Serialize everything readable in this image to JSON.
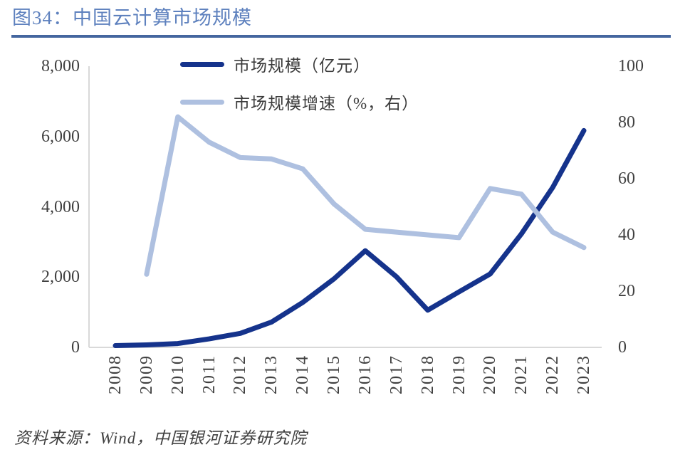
{
  "header": {
    "title": "图34：中国云计算市场规模"
  },
  "footer": {
    "source_note": "资料来源：Wind，中国银河证券研究院"
  },
  "colors": {
    "market_size_line": "#15338C",
    "growth_rate_line": "#AEC0E0",
    "title_text": "#5E81BE",
    "title_divider": "#44669F",
    "axis_line": "#D9D9D9",
    "axis_text": "#404040"
  },
  "chart_data": {
    "type": "line",
    "title": "中国云计算市场规模",
    "categories": [
      "2008",
      "2009",
      "2010",
      "2011",
      "2012",
      "2013",
      "2014",
      "2015",
      "2016",
      "2017",
      "2018",
      "2019",
      "2020",
      "2021",
      "2022",
      "2023"
    ],
    "series": [
      {
        "key": "market-size",
        "name": "市场规模（亿元）",
        "axis": "left",
        "color": "#15338C",
        "values": [
          50,
          70,
          110,
          240,
          400,
          720,
          1280,
          1950,
          2750,
          2010,
          1060,
          1580,
          2090,
          3230,
          4550,
          6170
        ]
      },
      {
        "key": "growth-rate",
        "name": "市场规模增速（%，右）",
        "axis": "right",
        "color": "#AEC0E0",
        "values": [
          null,
          26,
          82,
          73,
          67.5,
          67,
          63.5,
          51,
          42,
          41,
          40,
          39,
          56.5,
          54.5,
          41,
          35.5
        ]
      }
    ],
    "left_axis": {
      "ticks": [
        "0",
        "2,000",
        "4,000",
        "6,000",
        "8,000"
      ],
      "min": 0,
      "max": 8000
    },
    "right_axis": {
      "ticks": [
        "0",
        "20",
        "40",
        "60",
        "80",
        "100"
      ],
      "min": 0,
      "max": 100
    },
    "legend_position": "top-center",
    "grid": false,
    "x_labels_rotated_degrees": 90
  }
}
